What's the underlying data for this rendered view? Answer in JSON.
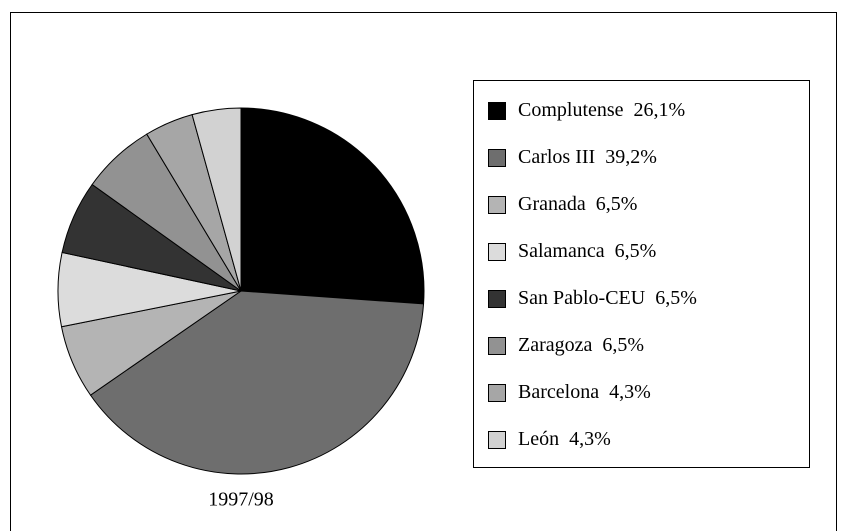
{
  "chart_data": {
    "type": "pie",
    "caption": "1997/98",
    "series": [
      {
        "name": "Complutense",
        "color": "#000000",
        "values": [
          26.1
        ],
        "value_labels": [
          "26,1%"
        ]
      },
      {
        "name": "Carlos III",
        "color": "#6e6e6e",
        "values": [
          39.2
        ],
        "value_labels": [
          "39,2%"
        ]
      },
      {
        "name": "Granada",
        "color": "#b4b4b4",
        "values": [
          6.5
        ],
        "value_labels": [
          "6,5%"
        ]
      },
      {
        "name": "Salamanca",
        "color": "#dcdcdc",
        "values": [
          6.5
        ],
        "value_labels": [
          "6,5%"
        ]
      },
      {
        "name": "San Pablo-CEU",
        "color": "#333333",
        "values": [
          6.5
        ],
        "value_labels": [
          "6,5%"
        ]
      },
      {
        "name": "Zaragoza",
        "color": "#929292",
        "values": [
          6.5
        ],
        "value_labels": [
          "6,5%"
        ]
      },
      {
        "name": "Barcelona",
        "color": "#a6a6a6",
        "values": [
          4.3
        ],
        "value_labels": [
          "4,3%"
        ]
      },
      {
        "name": "León",
        "color": "#d2d2d2",
        "values": [
          4.3
        ],
        "value_labels": [
          "4,3%"
        ]
      }
    ],
    "legend": "right"
  }
}
